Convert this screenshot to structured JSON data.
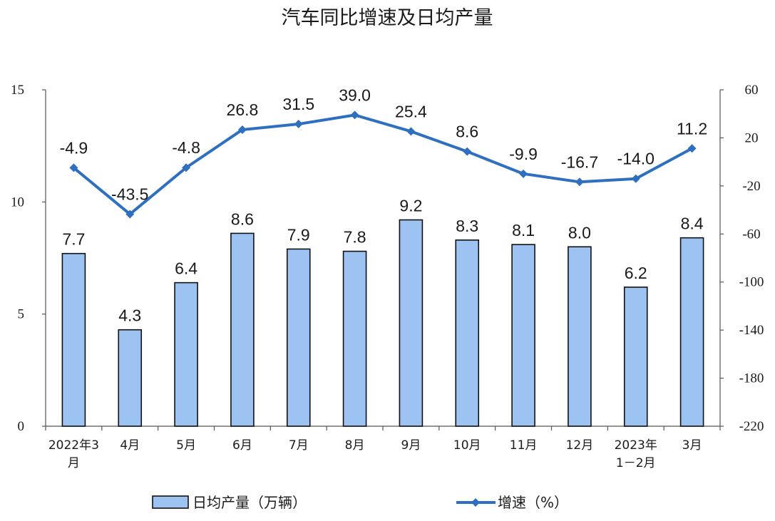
{
  "chart_data": {
    "type": "bar",
    "title": "汽车同比增速及日均产量",
    "categories": [
      [
        "2022年3",
        "月"
      ],
      [
        "4月"
      ],
      [
        "5月"
      ],
      [
        "6月"
      ],
      [
        "7月"
      ],
      [
        "8月"
      ],
      [
        "9月"
      ],
      [
        "10月"
      ],
      [
        "11月"
      ],
      [
        "12月"
      ],
      [
        "2023年",
        "1－2月"
      ],
      [
        "3月"
      ]
    ],
    "series": [
      {
        "name": "日均产量（万辆）",
        "type": "bar",
        "axis": "left",
        "values": [
          7.7,
          4.3,
          6.4,
          8.6,
          7.9,
          7.8,
          9.2,
          8.3,
          8.1,
          8.0,
          6.2,
          8.4
        ],
        "labels": [
          "7.7",
          "4.3",
          "6.4",
          "8.6",
          "7.9",
          "7.8",
          "9.2",
          "8.3",
          "8.1",
          "8.0",
          "6.2",
          "8.4"
        ],
        "color": "#9dc3f2"
      },
      {
        "name": "增速（%）",
        "type": "line",
        "axis": "right",
        "values": [
          -4.9,
          -43.5,
          -4.8,
          26.8,
          31.5,
          39.0,
          25.4,
          8.6,
          -9.9,
          -16.7,
          -14.0,
          11.2
        ],
        "labels": [
          "-4.9",
          "-43.5",
          "-4.8",
          "26.8",
          "31.5",
          "39.0",
          "25.4",
          "8.6",
          "-9.9",
          "-16.7",
          "-14.0",
          "11.2"
        ],
        "color": "#2e6fc0"
      }
    ],
    "y_left": {
      "min": 0,
      "max": 15,
      "ticks": [
        "0",
        "5",
        "10",
        "15"
      ]
    },
    "y_right": {
      "min": -220,
      "max": 60,
      "ticks": [
        "-220",
        "-180",
        "-140",
        "-100",
        "-60",
        "-20",
        "20",
        "60"
      ]
    },
    "grid": false,
    "legend": "bottom"
  }
}
